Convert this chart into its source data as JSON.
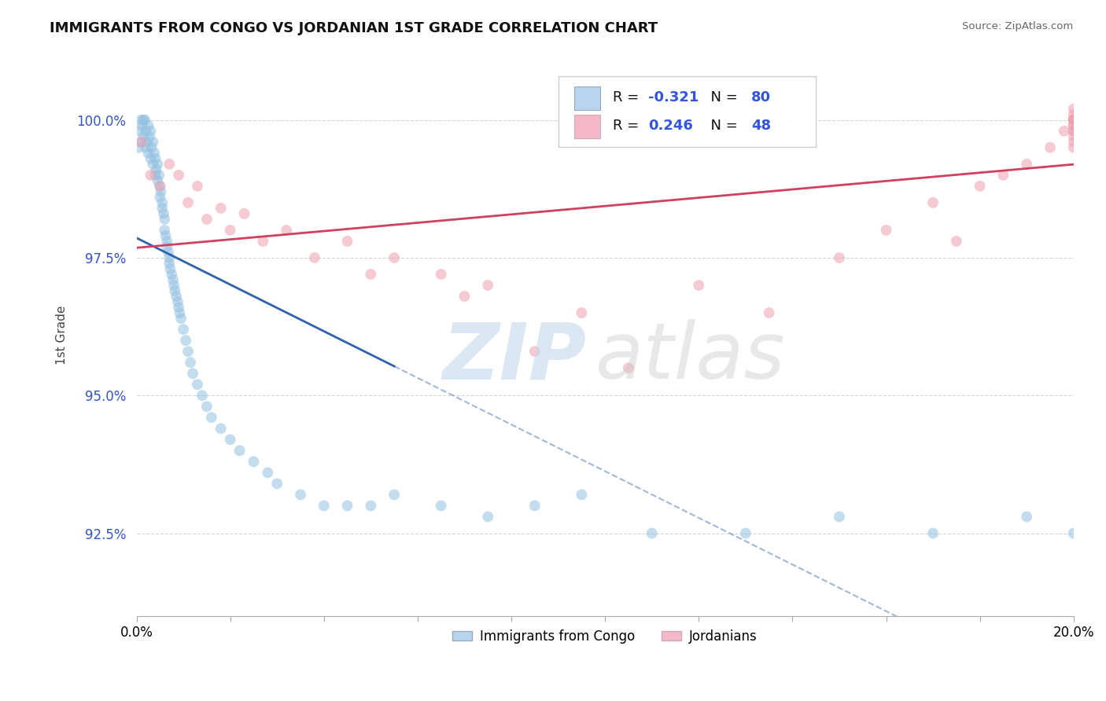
{
  "title": "IMMIGRANTS FROM CONGO VS JORDANIAN 1ST GRADE CORRELATION CHART",
  "source": "Source: ZipAtlas.com",
  "ylabel": "1st Grade",
  "xlim": [
    0.0,
    20.0
  ],
  "ylim": [
    91.0,
    101.2
  ],
  "yticks": [
    92.5,
    95.0,
    97.5,
    100.0
  ],
  "ytick_labels": [
    "92.5%",
    "95.0%",
    "97.5%",
    "100.0%"
  ],
  "bottom_legend": [
    "Immigrants from Congo",
    "Jordanians"
  ],
  "blue_color": "#92c0e0",
  "pink_color": "#f0a0b0",
  "blue_line_color": "#3060b0",
  "pink_line_color": "#d04060",
  "blue_line_solid_end": 5.5,
  "congo_x": [
    0.05,
    0.08,
    0.1,
    0.1,
    0.12,
    0.15,
    0.15,
    0.18,
    0.2,
    0.2,
    0.22,
    0.25,
    0.25,
    0.28,
    0.3,
    0.3,
    0.32,
    0.35,
    0.35,
    0.38,
    0.4,
    0.4,
    0.42,
    0.45,
    0.45,
    0.48,
    0.5,
    0.5,
    0.52,
    0.55,
    0.55,
    0.58,
    0.6,
    0.6,
    0.62,
    0.65,
    0.65,
    0.68,
    0.7,
    0.7,
    0.72,
    0.75,
    0.78,
    0.8,
    0.82,
    0.85,
    0.88,
    0.9,
    0.92,
    0.95,
    1.0,
    1.05,
    1.1,
    1.15,
    1.2,
    1.3,
    1.4,
    1.5,
    1.6,
    1.8,
    2.0,
    2.2,
    2.5,
    2.8,
    3.0,
    3.5,
    4.0,
    4.5,
    5.0,
    5.5,
    6.5,
    7.5,
    8.5,
    9.5,
    11.0,
    13.0,
    15.0,
    17.0,
    19.0,
    20.0
  ],
  "congo_y": [
    99.5,
    99.8,
    100.0,
    99.6,
    99.9,
    100.0,
    99.7,
    100.0,
    99.8,
    99.5,
    99.6,
    99.9,
    99.4,
    99.7,
    99.8,
    99.3,
    99.5,
    99.6,
    99.2,
    99.4,
    99.3,
    99.0,
    99.1,
    99.2,
    98.9,
    99.0,
    98.8,
    98.6,
    98.7,
    98.5,
    98.4,
    98.3,
    98.2,
    98.0,
    97.9,
    97.8,
    97.7,
    97.6,
    97.5,
    97.4,
    97.3,
    97.2,
    97.1,
    97.0,
    96.9,
    96.8,
    96.7,
    96.6,
    96.5,
    96.4,
    96.2,
    96.0,
    95.8,
    95.6,
    95.4,
    95.2,
    95.0,
    94.8,
    94.6,
    94.4,
    94.2,
    94.0,
    93.8,
    93.6,
    93.4,
    93.2,
    93.0,
    93.0,
    93.0,
    93.2,
    93.0,
    92.8,
    93.0,
    93.2,
    92.5,
    92.5,
    92.8,
    92.5,
    92.8,
    92.5
  ],
  "jordan_x": [
    0.1,
    0.3,
    0.5,
    0.7,
    0.9,
    1.1,
    1.3,
    1.5,
    1.8,
    2.0,
    2.3,
    2.7,
    3.2,
    3.8,
    4.5,
    5.0,
    5.5,
    6.5,
    7.0,
    7.5,
    8.5,
    9.5,
    10.5,
    12.0,
    13.5,
    15.0,
    16.0,
    17.0,
    17.5,
    18.0,
    18.5,
    19.0,
    19.5,
    19.8,
    20.0,
    20.0,
    20.0,
    20.0,
    20.0,
    20.0,
    20.0,
    20.0,
    20.0,
    20.0,
    20.0,
    20.0,
    20.0,
    20.0
  ],
  "jordan_y": [
    99.6,
    99.0,
    98.8,
    99.2,
    99.0,
    98.5,
    98.8,
    98.2,
    98.4,
    98.0,
    98.3,
    97.8,
    98.0,
    97.5,
    97.8,
    97.2,
    97.5,
    97.2,
    96.8,
    97.0,
    95.8,
    96.5,
    95.5,
    97.0,
    96.5,
    97.5,
    98.0,
    98.5,
    97.8,
    98.8,
    99.0,
    99.2,
    99.5,
    99.8,
    100.0,
    99.8,
    100.2,
    99.9,
    100.0,
    100.1,
    99.7,
    100.0,
    99.6,
    100.0,
    99.8,
    99.5,
    100.0,
    99.9
  ],
  "blue_R": "-0.321",
  "blue_N": "80",
  "pink_R": "0.246",
  "pink_N": "48",
  "legend_blue_fill": "#b8d4ee",
  "legend_pink_fill": "#f4b8c8"
}
